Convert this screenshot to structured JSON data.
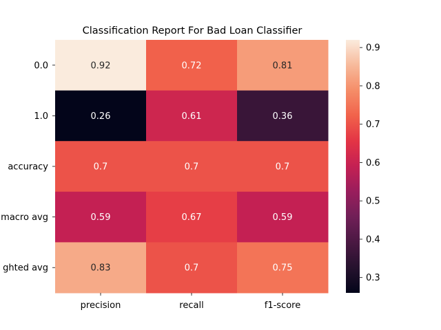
{
  "chart_data": {
    "type": "heatmap",
    "title": "Classification Report For Bad Loan Classifier",
    "xlabel": "",
    "ylabel": "",
    "columns": [
      "precision",
      "recall",
      "f1-score"
    ],
    "rows": [
      "0.0",
      "1.0",
      "accuracy",
      "macro avg",
      "ghted avg"
    ],
    "values": [
      [
        0.92,
        0.72,
        0.81
      ],
      [
        0.26,
        0.61,
        0.36
      ],
      [
        0.7,
        0.7,
        0.7
      ],
      [
        0.59,
        0.67,
        0.59
      ],
      [
        0.83,
        0.7,
        0.75
      ]
    ],
    "annotations": [
      [
        "0.92",
        "0.72",
        "0.81"
      ],
      [
        "0.26",
        "0.61",
        "0.36"
      ],
      [
        "0.7",
        "0.7",
        "0.7"
      ],
      [
        "0.59",
        "0.67",
        "0.59"
      ],
      [
        "0.83",
        "0.7",
        "0.75"
      ]
    ],
    "colormap": "rocket",
    "colorbar": {
      "range": [
        0.26,
        0.92
      ],
      "ticks": [
        0.3,
        0.4,
        0.5,
        0.6,
        0.7,
        0.8,
        0.9
      ],
      "tick_labels": [
        "0.3",
        "0.4",
        "0.5",
        "0.6",
        "0.7",
        "0.8",
        "0.9"
      ]
    },
    "grid": false
  }
}
